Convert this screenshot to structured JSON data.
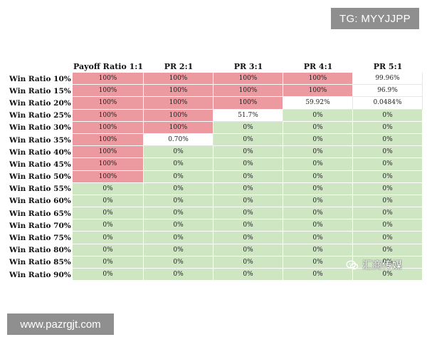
{
  "overlays": {
    "tg_label": "TG: MYYJJPP",
    "url_label": "www.pazrgjt.com",
    "watermark_text": "汇商传媒",
    "watermark_icon": "wechat-icon"
  },
  "colors": {
    "red": "#ec9aa0",
    "green": "#cfe6c3",
    "white": "#ffffff"
  },
  "table": {
    "corner": "",
    "columns": [
      "Payoff Ratio 1:1",
      "PR 2:1",
      "PR 3:1",
      "PR 4:1",
      "PR 5:1"
    ],
    "rows": [
      {
        "label": "Win Ratio 10%",
        "values": [
          "100%",
          "100%",
          "100%",
          "100%",
          "99.96%"
        ],
        "colors": [
          "red",
          "red",
          "red",
          "red",
          "white"
        ]
      },
      {
        "label": "Win Ratio 15%",
        "values": [
          "100%",
          "100%",
          "100%",
          "100%",
          "96.9%"
        ],
        "colors": [
          "red",
          "red",
          "red",
          "red",
          "white"
        ]
      },
      {
        "label": "Win Ratio 20%",
        "values": [
          "100%",
          "100%",
          "100%",
          "59.92%",
          "0.0484%"
        ],
        "colors": [
          "red",
          "red",
          "red",
          "white",
          "white"
        ]
      },
      {
        "label": "Win Ratio 25%",
        "values": [
          "100%",
          "100%",
          "51.7%",
          "0%",
          "0%"
        ],
        "colors": [
          "red",
          "red",
          "white",
          "green",
          "green"
        ]
      },
      {
        "label": "Win Ratio 30%",
        "values": [
          "100%",
          "100%",
          "0%",
          "0%",
          "0%"
        ],
        "colors": [
          "red",
          "red",
          "green",
          "green",
          "green"
        ]
      },
      {
        "label": "Win Ratio 35%",
        "values": [
          "100%",
          "0.70%",
          "0%",
          "0%",
          "0%"
        ],
        "colors": [
          "red",
          "white",
          "green",
          "green",
          "green"
        ]
      },
      {
        "label": "Win Ratio 40%",
        "values": [
          "100%",
          "0%",
          "0%",
          "0%",
          "0%"
        ],
        "colors": [
          "red",
          "green",
          "green",
          "green",
          "green"
        ]
      },
      {
        "label": "Win Ratio 45%",
        "values": [
          "100%",
          "0%",
          "0%",
          "0%",
          "0%"
        ],
        "colors": [
          "red",
          "green",
          "green",
          "green",
          "green"
        ]
      },
      {
        "label": "Win Ratio 50%",
        "values": [
          "100%",
          "0%",
          "0%",
          "0%",
          "0%"
        ],
        "colors": [
          "red",
          "green",
          "green",
          "green",
          "green"
        ]
      },
      {
        "label": "Win Ratio 55%",
        "values": [
          "0%",
          "0%",
          "0%",
          "0%",
          "0%"
        ],
        "colors": [
          "green",
          "green",
          "green",
          "green",
          "green"
        ]
      },
      {
        "label": "Win Ratio 60%",
        "values": [
          "0%",
          "0%",
          "0%",
          "0%",
          "0%"
        ],
        "colors": [
          "green",
          "green",
          "green",
          "green",
          "green"
        ]
      },
      {
        "label": "Win Ratio 65%",
        "values": [
          "0%",
          "0%",
          "0%",
          "0%",
          "0%"
        ],
        "colors": [
          "green",
          "green",
          "green",
          "green",
          "green"
        ]
      },
      {
        "label": "Win Ratio 70%",
        "values": [
          "0%",
          "0%",
          "0%",
          "0%",
          "0%"
        ],
        "colors": [
          "green",
          "green",
          "green",
          "green",
          "green"
        ]
      },
      {
        "label": "Win Ratio 75%",
        "values": [
          "0%",
          "0%",
          "0%",
          "0%",
          "0%"
        ],
        "colors": [
          "green",
          "green",
          "green",
          "green",
          "green"
        ]
      },
      {
        "label": "Win Ratio 80%",
        "values": [
          "0%",
          "0%",
          "0%",
          "0%",
          "0%"
        ],
        "colors": [
          "green",
          "green",
          "green",
          "green",
          "green"
        ]
      },
      {
        "label": "Win Ratio 85%",
        "values": [
          "0%",
          "0%",
          "0%",
          "0%",
          "0%"
        ],
        "colors": [
          "green",
          "green",
          "green",
          "green",
          "green"
        ]
      },
      {
        "label": "Win Ratio 90%",
        "values": [
          "0%",
          "0%",
          "0%",
          "0%",
          "0%"
        ],
        "colors": [
          "green",
          "green",
          "green",
          "green",
          "green"
        ]
      }
    ]
  }
}
